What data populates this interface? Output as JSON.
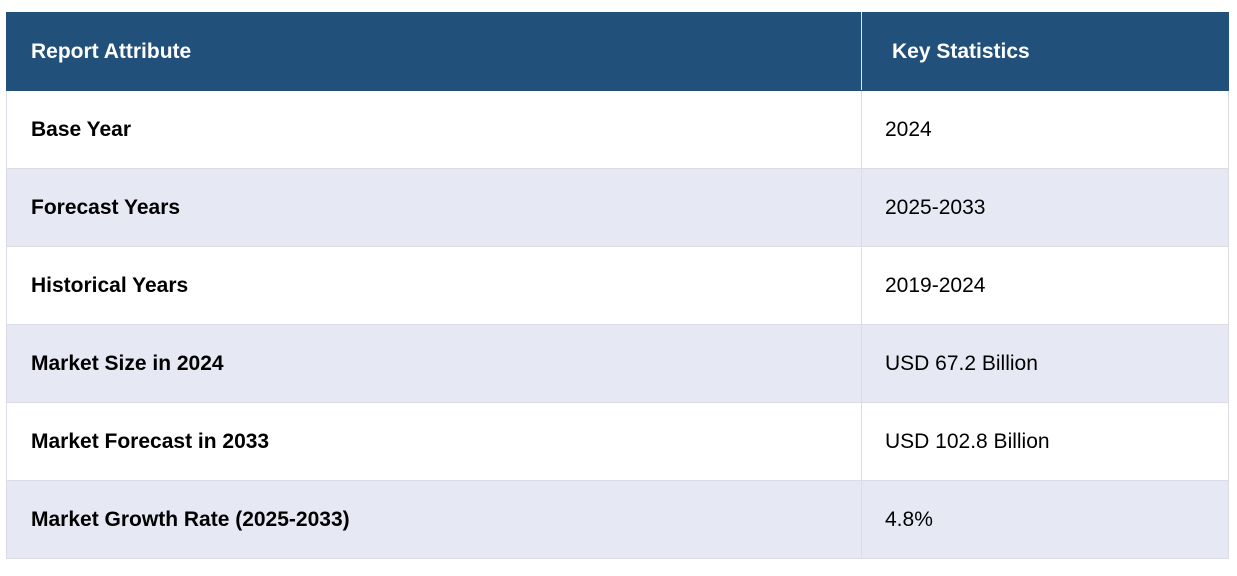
{
  "header": {
    "attribute_label": "Report Attribute",
    "statistics_label": "Key Statistics"
  },
  "rows": [
    {
      "attribute": "Base Year",
      "value": "2024"
    },
    {
      "attribute": "Forecast Years",
      "value": "2025-2033"
    },
    {
      "attribute": "Historical Years",
      "value": "2019-2024"
    },
    {
      "attribute": "Market Size in 2024",
      "value": "USD 67.2 Billion"
    },
    {
      "attribute": "Market Forecast in 2033",
      "value": "USD 102.8 Billion"
    },
    {
      "attribute": "Market Growth Rate (2025-2033)",
      "value": "4.8%"
    }
  ],
  "colors": {
    "header_bg": "#21507a",
    "header_text": "#ffffff",
    "row_alt_bg": "#e6e8f4",
    "row_bg": "#ffffff"
  }
}
